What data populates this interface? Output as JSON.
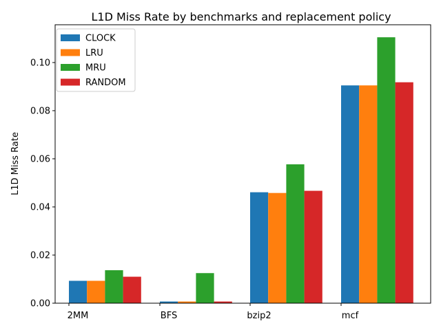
{
  "chart_data": {
    "type": "bar",
    "title": "L1D Miss Rate by benchmarks and replacement policy",
    "xlabel": "",
    "ylabel": "L1D Miss Rate",
    "categories": [
      "2MM",
      "BFS",
      "bzip2",
      "mcf"
    ],
    "series": [
      {
        "name": "CLOCK",
        "color": "#1f77b4",
        "values": [
          0.0093,
          0.0007,
          0.0461,
          0.0905
        ]
      },
      {
        "name": "LRU",
        "color": "#ff7f0e",
        "values": [
          0.0093,
          0.0007,
          0.0458,
          0.0905
        ]
      },
      {
        "name": "MRU",
        "color": "#2ca02c",
        "values": [
          0.0137,
          0.0125,
          0.0577,
          0.1105
        ]
      },
      {
        "name": "RANDOM",
        "color": "#d62728",
        "values": [
          0.011,
          0.0007,
          0.0467,
          0.0918
        ]
      }
    ],
    "ylim": [
      0,
      0.1157
    ],
    "yticks": [
      "0.00",
      "0.02",
      "0.04",
      "0.06",
      "0.08",
      "0.10"
    ],
    "ytick_values": [
      0,
      0.02,
      0.04,
      0.06,
      0.08,
      0.1
    ],
    "grid": false,
    "legend_position": "upper-left"
  }
}
